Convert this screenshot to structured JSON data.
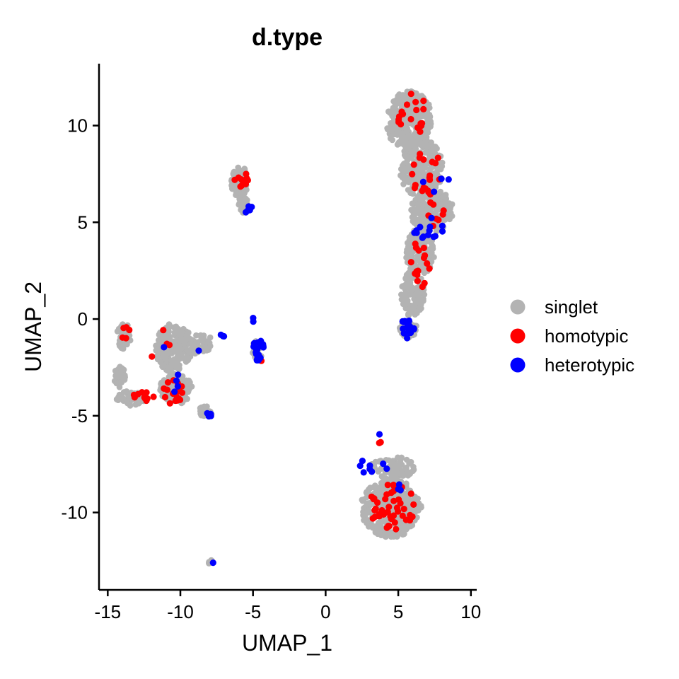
{
  "chart_data": {
    "type": "scatter",
    "title": "d.type",
    "xlabel": "UMAP_1",
    "ylabel": "UMAP_2",
    "xlim": [
      -15.6,
      10.4
    ],
    "ylim": [
      -14.0,
      13.2
    ],
    "x_ticks": [
      -15,
      -10,
      -5,
      0,
      5,
      10
    ],
    "y_ticks": [
      -10,
      -5,
      0,
      5,
      10
    ],
    "grid": false,
    "legend_position": "right",
    "series": [
      {
        "name": "singlet",
        "color": "#b3b3b3",
        "clusters": [
          {
            "cx": 5.8,
            "cy": 10.2,
            "rx": 1.6,
            "ry": 1.6,
            "n": 260
          },
          {
            "cx": 6.6,
            "cy": 7.8,
            "rx": 1.5,
            "ry": 1.5,
            "n": 220
          },
          {
            "cx": 7.3,
            "cy": 5.6,
            "rx": 1.5,
            "ry": 1.1,
            "n": 180
          },
          {
            "cx": 6.5,
            "cy": 3.5,
            "rx": 1.0,
            "ry": 1.2,
            "n": 120
          },
          {
            "cx": 6.0,
            "cy": 1.3,
            "rx": 0.8,
            "ry": 1.2,
            "n": 100
          },
          {
            "cx": 5.7,
            "cy": -0.5,
            "rx": 0.6,
            "ry": 0.5,
            "n": 50
          },
          {
            "cx": 4.5,
            "cy": -9.8,
            "rx": 2.1,
            "ry": 1.5,
            "n": 340
          },
          {
            "cx": 4.6,
            "cy": -7.7,
            "rx": 1.5,
            "ry": 0.6,
            "n": 80
          },
          {
            "cx": -5.9,
            "cy": 7.1,
            "rx": 0.6,
            "ry": 0.8,
            "n": 90
          },
          {
            "cx": -5.7,
            "cy": 5.9,
            "rx": 0.4,
            "ry": 0.4,
            "n": 25
          },
          {
            "cx": -10.4,
            "cy": -1.5,
            "rx": 1.3,
            "ry": 1.3,
            "n": 190
          },
          {
            "cx": -10.3,
            "cy": -3.6,
            "rx": 1.1,
            "ry": 0.8,
            "n": 120
          },
          {
            "cx": -13.4,
            "cy": -4.1,
            "rx": 1.0,
            "ry": 0.4,
            "n": 60
          },
          {
            "cx": -13.9,
            "cy": -0.9,
            "rx": 0.5,
            "ry": 0.7,
            "n": 40
          },
          {
            "cx": -14.2,
            "cy": -3.0,
            "rx": 0.4,
            "ry": 0.6,
            "n": 25
          },
          {
            "cx": -8.7,
            "cy": -1.3,
            "rx": 1.1,
            "ry": 0.5,
            "n": 50
          },
          {
            "cx": -8.3,
            "cy": -4.8,
            "rx": 0.5,
            "ry": 0.3,
            "n": 18
          },
          {
            "cx": -7.9,
            "cy": -12.6,
            "rx": 0.15,
            "ry": 0.15,
            "n": 10
          },
          {
            "cx": -4.7,
            "cy": -1.6,
            "rx": 0.4,
            "ry": 0.5,
            "n": 20
          }
        ]
      },
      {
        "name": "homotypic",
        "color": "#ff0000",
        "clusters": [
          {
            "cx": 5.9,
            "cy": 10.6,
            "rx": 1.2,
            "ry": 1.1,
            "n": 18
          },
          {
            "cx": 7.0,
            "cy": 7.5,
            "rx": 1.1,
            "ry": 1.2,
            "n": 20
          },
          {
            "cx": 7.6,
            "cy": 5.4,
            "rx": 0.9,
            "ry": 0.7,
            "n": 8
          },
          {
            "cx": 6.5,
            "cy": 2.8,
            "rx": 0.7,
            "ry": 1.3,
            "n": 16
          },
          {
            "cx": 4.6,
            "cy": -9.7,
            "rx": 1.6,
            "ry": 1.2,
            "n": 45
          },
          {
            "cx": 3.7,
            "cy": -6.3,
            "rx": 0.1,
            "ry": 0.2,
            "n": 3
          },
          {
            "cx": -5.8,
            "cy": 7.2,
            "rx": 0.5,
            "ry": 0.5,
            "n": 12
          },
          {
            "cx": -10.5,
            "cy": -3.6,
            "rx": 0.8,
            "ry": 0.8,
            "n": 18
          },
          {
            "cx": -12.6,
            "cy": -4.0,
            "rx": 0.8,
            "ry": 0.3,
            "n": 10
          },
          {
            "cx": -13.7,
            "cy": -0.8,
            "rx": 0.3,
            "ry": 0.5,
            "n": 5
          },
          {
            "cx": -11.5,
            "cy": -1.3,
            "rx": 0.8,
            "ry": 0.8,
            "n": 4
          },
          {
            "cx": -4.4,
            "cy": -2.0,
            "rx": 0.2,
            "ry": 0.2,
            "n": 2
          }
        ]
      },
      {
        "name": "heterotypic",
        "color": "#0000ff",
        "clusters": [
          {
            "cx": 7.0,
            "cy": 4.6,
            "rx": 1.1,
            "ry": 0.8,
            "n": 14
          },
          {
            "cx": 5.6,
            "cy": -0.5,
            "rx": 0.5,
            "ry": 0.5,
            "n": 18
          },
          {
            "cx": 7.2,
            "cy": 6.8,
            "rx": 1.5,
            "ry": 0.8,
            "n": 4
          },
          {
            "cx": 3.0,
            "cy": -7.6,
            "rx": 1.4,
            "ry": 0.5,
            "n": 8
          },
          {
            "cx": 5.0,
            "cy": -8.6,
            "rx": 0.4,
            "ry": 0.5,
            "n": 3
          },
          {
            "cx": -4.6,
            "cy": -1.6,
            "rx": 0.4,
            "ry": 0.6,
            "n": 24
          },
          {
            "cx": -4.9,
            "cy": -0.1,
            "rx": 0.15,
            "ry": 0.3,
            "n": 2
          },
          {
            "cx": -5.5,
            "cy": 5.7,
            "rx": 0.5,
            "ry": 0.2,
            "n": 5
          },
          {
            "cx": -7.0,
            "cy": -0.8,
            "rx": 0.3,
            "ry": 0.1,
            "n": 3
          },
          {
            "cx": -8.1,
            "cy": -5.0,
            "rx": 0.3,
            "ry": 0.2,
            "n": 4
          },
          {
            "cx": -10.3,
            "cy": -3.1,
            "rx": 0.6,
            "ry": 1.0,
            "n": 4
          },
          {
            "cx": -11.2,
            "cy": -1.4,
            "rx": 0.2,
            "ry": 0.2,
            "n": 1
          },
          {
            "cx": -8.8,
            "cy": -1.7,
            "rx": 0.2,
            "ry": 0.2,
            "n": 1
          },
          {
            "cx": -7.7,
            "cy": -12.6,
            "rx": 0.05,
            "ry": 0.05,
            "n": 1
          },
          {
            "cx": 3.7,
            "cy": -6.0,
            "rx": 0.05,
            "ry": 0.1,
            "n": 1
          }
        ]
      }
    ]
  }
}
